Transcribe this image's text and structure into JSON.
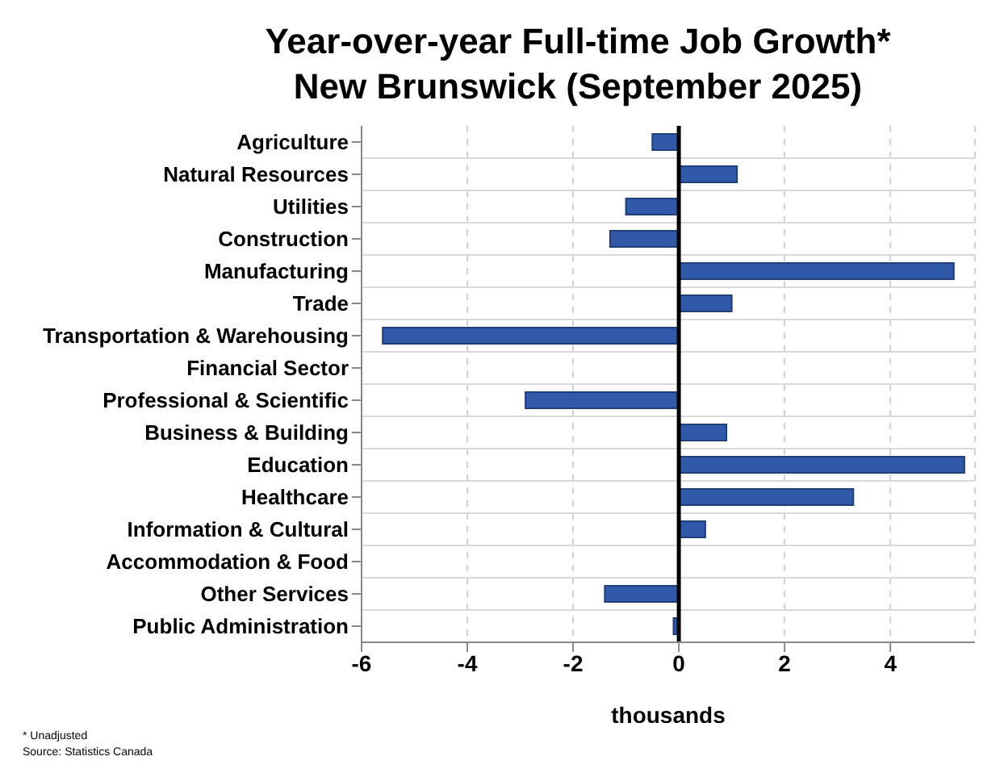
{
  "chart_data": {
    "type": "bar",
    "orientation": "horizontal",
    "title": "Year-over-year Full-time Job Growth*\nNew Brunswick (September 2025)",
    "xlabel": "thousands",
    "categories": [
      "Agriculture",
      "Natural Resources",
      "Utilities",
      "Construction",
      "Manufacturing",
      "Trade",
      "Transportation & Warehousing",
      "Financial Sector",
      "Professional & Scientific",
      "Business & Building",
      "Education",
      "Healthcare",
      "Information & Cultural",
      "Accommodation & Food",
      "Other Services",
      "Public Administration"
    ],
    "values": [
      -0.5,
      1.1,
      -1.0,
      -1.3,
      5.2,
      1.0,
      -5.6,
      0,
      -2.9,
      0.9,
      5.4,
      3.3,
      0.5,
      0,
      -1.4,
      -0.1
    ],
    "color": "#3059a8",
    "xlim": [
      -6,
      5.6
    ],
    "xticks": [
      -6,
      -4,
      -2,
      0,
      2,
      4
    ],
    "grid": true,
    "ref_lines": [
      {
        "axis": "x",
        "value": 0,
        "color": "#000000"
      }
    ],
    "annotations": [
      "* Unadjusted",
      "Source: Statistics Canada"
    ]
  }
}
